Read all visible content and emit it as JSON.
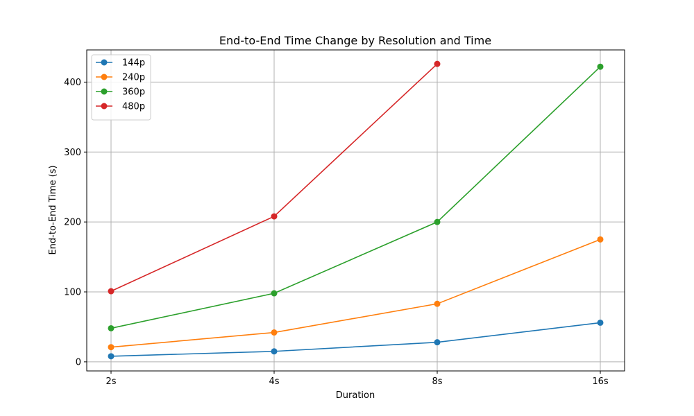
{
  "chart_data": {
    "type": "line",
    "title": "End-to-End Time Change by Resolution and Time",
    "xlabel": "Duration",
    "ylabel": "End-to-End Time (s)",
    "categories": [
      "2s",
      "4s",
      "8s",
      "16s"
    ],
    "yticks": [
      0,
      100,
      200,
      300,
      400
    ],
    "ylim": [
      -13,
      446
    ],
    "grid": true,
    "legend_position": "top-left",
    "series": [
      {
        "name": "144p",
        "color": "#1f77b4",
        "values": [
          8,
          15,
          28,
          56
        ]
      },
      {
        "name": "240p",
        "color": "#ff7f0e",
        "values": [
          21,
          42,
          83,
          175
        ]
      },
      {
        "name": "360p",
        "color": "#2ca02c",
        "values": [
          48,
          98,
          200,
          422
        ]
      },
      {
        "name": "480p",
        "color": "#d62728",
        "values": [
          101,
          208,
          426,
          null
        ]
      }
    ]
  }
}
